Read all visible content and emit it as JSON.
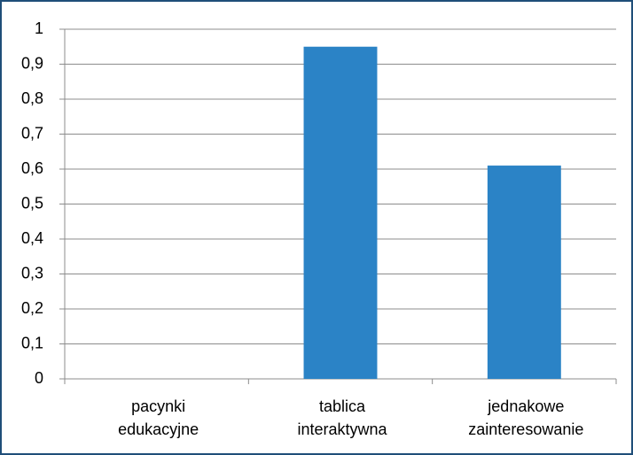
{
  "chart_data": {
    "type": "bar",
    "categories": [
      "pacynki edukacyjne",
      "tablica interaktywna",
      "jednakowe zainteresowanie"
    ],
    "values": [
      0,
      0.95,
      0.61
    ],
    "color": "#2b83c6",
    "ylim": [
      0,
      1
    ],
    "yticks": [
      0,
      {
        "value": 0.1,
        "label": "0,1"
      },
      {
        "value": 0.2,
        "label": "0,2"
      },
      {
        "value": 0.3,
        "label": "0,3"
      },
      {
        "value": 0.4,
        "label": "0,4"
      },
      {
        "value": 0.5,
        "label": "0,5"
      },
      {
        "value": 0.6,
        "label": "0,6"
      },
      {
        "value": 0.7,
        "label": "0,7"
      },
      {
        "value": 0.8,
        "label": "0,8"
      },
      {
        "value": 0.9,
        "label": "0,9"
      },
      1
    ],
    "grid": true
  }
}
